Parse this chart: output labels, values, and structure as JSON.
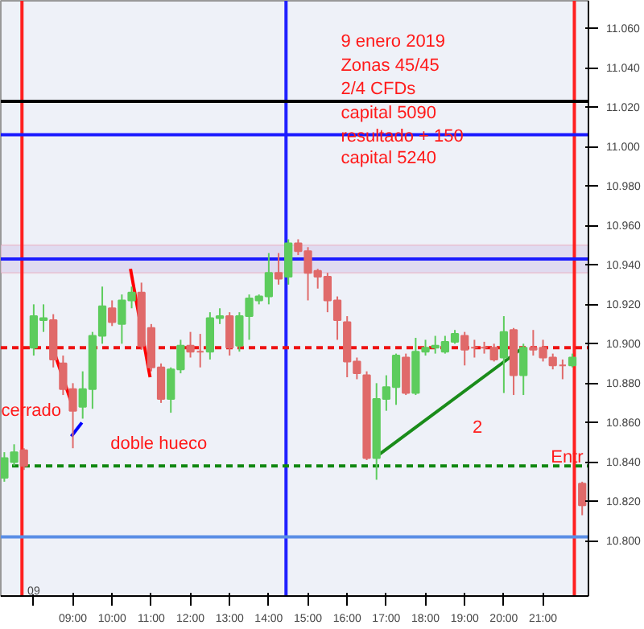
{
  "chart_data": {
    "type": "candlestick",
    "x": [
      7.25,
      7.5,
      7.75,
      8.0,
      8.25,
      8.5,
      8.75,
      9.0,
      9.25,
      9.5,
      9.75,
      10.0,
      10.25,
      10.5,
      10.75,
      11.0,
      11.25,
      11.5,
      11.75,
      12.0,
      12.25,
      12.5,
      12.75,
      13.0,
      13.25,
      13.5,
      13.75,
      14.0,
      14.25,
      14.5,
      14.75,
      15.0,
      15.25,
      15.5,
      15.75,
      16.0,
      16.25,
      16.5,
      16.75,
      17.0,
      17.25,
      17.5,
      17.75,
      18.0,
      18.25,
      18.5,
      18.75,
      19.0,
      19.25,
      19.5,
      19.75,
      20.0,
      20.25,
      20.5,
      20.75,
      21.0,
      21.25,
      21.5,
      21.75,
      22.0
    ],
    "ohlc": [
      [
        10.832,
        10.845,
        10.83,
        10.842
      ],
      [
        10.84,
        10.849,
        10.838,
        10.845
      ],
      [
        10.846,
        10.847,
        10.836,
        10.838
      ],
      [
        10.898,
        10.92,
        10.894,
        10.914
      ],
      [
        10.912,
        10.92,
        10.906,
        10.913
      ],
      [
        10.912,
        10.915,
        10.888,
        10.892
      ],
      [
        10.89,
        10.894,
        10.874,
        10.877
      ],
      [
        10.877,
        10.88,
        10.847,
        10.866
      ],
      [
        10.868,
        10.886,
        10.862,
        10.877
      ],
      [
        10.877,
        10.906,
        10.867,
        10.904
      ],
      [
        10.904,
        10.929,
        10.9,
        10.919
      ],
      [
        10.918,
        10.922,
        10.909,
        10.911
      ],
      [
        10.91,
        10.925,
        10.9,
        10.922
      ],
      [
        10.922,
        10.929,
        10.918,
        10.926
      ],
      [
        10.926,
        10.931,
        10.897,
        10.899
      ],
      [
        10.908,
        10.91,
        10.886,
        10.888
      ],
      [
        10.888,
        10.89,
        10.87,
        10.872
      ],
      [
        10.872,
        10.888,
        10.865,
        10.887
      ],
      [
        10.887,
        10.902,
        10.885,
        10.899
      ],
      [
        10.899,
        10.906,
        10.893,
        10.896
      ],
      [
        10.896,
        10.905,
        10.888,
        10.896
      ],
      [
        10.896,
        10.916,
        10.892,
        10.913
      ],
      [
        10.913,
        10.918,
        10.91,
        10.914
      ],
      [
        10.914,
        10.916,
        10.894,
        10.898
      ],
      [
        10.899,
        10.916,
        10.896,
        10.914
      ],
      [
        10.914,
        10.925,
        10.902,
        10.923
      ],
      [
        10.922,
        10.925,
        10.92,
        10.924
      ],
      [
        10.924,
        10.946,
        10.92,
        10.936
      ],
      [
        10.936,
        10.946,
        10.93,
        10.933
      ],
      [
        10.934,
        10.953,
        10.93,
        10.951
      ],
      [
        10.951,
        10.953,
        10.945,
        10.947
      ],
      [
        10.947,
        10.949,
        10.922,
        10.936
      ],
      [
        10.937,
        10.938,
        10.928,
        10.934
      ],
      [
        10.934,
        10.936,
        10.916,
        10.922
      ],
      [
        10.922,
        10.924,
        10.902,
        10.912
      ],
      [
        10.911,
        10.914,
        10.883,
        10.891
      ],
      [
        10.891,
        10.893,
        10.882,
        10.885
      ],
      [
        10.884,
        10.886,
        10.841,
        10.842
      ],
      [
        10.842,
        10.88,
        10.831,
        10.872
      ],
      [
        10.872,
        10.884,
        10.866,
        10.878
      ],
      [
        10.878,
        10.895,
        10.869,
        10.894
      ],
      [
        10.893,
        10.895,
        10.874,
        10.875
      ],
      [
        10.875,
        10.903,
        10.874,
        10.896
      ],
      [
        10.896,
        10.902,
        10.894,
        10.898
      ],
      [
        10.898,
        10.904,
        10.895,
        10.899
      ],
      [
        10.896,
        10.904,
        10.895,
        10.901
      ],
      [
        10.901,
        10.907,
        10.9,
        10.905
      ],
      [
        10.904,
        10.906,
        10.889,
        10.897
      ],
      [
        10.898,
        10.902,
        10.893,
        10.898
      ],
      [
        10.898,
        10.901,
        10.895,
        10.898
      ],
      [
        10.898,
        10.9,
        10.891,
        10.892
      ],
      [
        10.893,
        10.914,
        10.875,
        10.906
      ],
      [
        10.907,
        10.908,
        10.874,
        10.884
      ],
      [
        10.884,
        10.9,
        10.874,
        10.898
      ],
      [
        10.898,
        10.907,
        10.894,
        10.897
      ],
      [
        10.898,
        10.902,
        10.891,
        10.893
      ],
      [
        10.893,
        10.895,
        10.887,
        10.889
      ],
      [
        10.889,
        10.892,
        10.882,
        10.889
      ],
      [
        10.889,
        10.895,
        10.888,
        10.893
      ],
      [
        10.829,
        10.83,
        10.813,
        10.818
      ]
    ],
    "colors": [
      "#5dcc5d",
      "#5dcc5d",
      "#e06a6a",
      "#5dcc5d",
      "#5dcc5d",
      "#e06a6a",
      "#e06a6a",
      "#e06a6a",
      "#5dcc5d",
      "#5dcc5d",
      "#5dcc5d",
      "#e06a6a",
      "#5dcc5d",
      "#5dcc5d",
      "#e06a6a",
      "#e06a6a",
      "#e06a6a",
      "#5dcc5d",
      "#5dcc5d",
      "#e06a6a",
      "#e06a6a",
      "#5dcc5d",
      "#5dcc5d",
      "#e06a6a",
      "#5dcc5d",
      "#5dcc5d",
      "#5dcc5d",
      "#5dcc5d",
      "#e06a6a",
      "#5dcc5d",
      "#e06a6a",
      "#e06a6a",
      "#e06a6a",
      "#e06a6a",
      "#e06a6a",
      "#e06a6a",
      "#e06a6a",
      "#e06a6a",
      "#5dcc5d",
      "#5dcc5d",
      "#5dcc5d",
      "#e06a6a",
      "#5dcc5d",
      "#5dcc5d",
      "#5dcc5d",
      "#5dcc5d",
      "#5dcc5d",
      "#e06a6a",
      "#e06a6a",
      "#e06a6a",
      "#e06a6a",
      "#5dcc5d",
      "#e06a6a",
      "#5dcc5d",
      "#e06a6a",
      "#e06a6a",
      "#e06a6a",
      "#e06a6a",
      "#5dcc5d",
      "#e06a6a"
    ],
    "series": [
      {
        "type": "line",
        "color": "#ff0000",
        "x": [
          8.5,
          9.0
        ],
        "values": [
          10.897,
          10.868
        ]
      },
      {
        "type": "line",
        "color": "#ff0000",
        "x": [
          10.47,
          10.97
        ],
        "values": [
          10.938,
          10.883
        ]
      },
      {
        "type": "line",
        "color": "#1a8c1a",
        "x": [
          16.76,
          20.49
        ],
        "values": [
          10.843,
          10.898
        ]
      },
      {
        "type": "line",
        "color": "#0000ff",
        "x": [
          8.96,
          9.23
        ],
        "values": [
          10.853,
          10.86
        ]
      }
    ],
    "xlim": [
      7.16,
      22.16
    ],
    "xticks": [
      {
        "value": 8,
        "label": null
      },
      {
        "value": 9,
        "label": "09:00"
      },
      {
        "value": 10,
        "label": "10:00"
      },
      {
        "value": 11,
        "label": "11:00"
      },
      {
        "value": 12,
        "label": "12:00"
      },
      {
        "value": 13,
        "label": "13:00"
      },
      {
        "value": 14,
        "label": "14:00"
      },
      {
        "value": 15,
        "label": "15:00"
      },
      {
        "value": 16,
        "label": "16:00"
      },
      {
        "value": 17,
        "label": "17:00"
      },
      {
        "value": 18,
        "label": "18:00"
      },
      {
        "value": 19,
        "label": "19:00"
      },
      {
        "value": 20,
        "label": "20:00"
      },
      {
        "value": 21,
        "label": "21:00"
      }
    ],
    "ylim": [
      10.772,
      11.074
    ],
    "yticks": [
      {
        "value": 10.8,
        "label": "10.800"
      },
      {
        "value": 10.82,
        "label": "10.820"
      },
      {
        "value": 10.84,
        "label": "10.840"
      },
      {
        "value": 10.86,
        "label": "10.860"
      },
      {
        "value": 10.88,
        "label": "10.880"
      },
      {
        "value": 10.9,
        "label": "10.900"
      },
      {
        "value": 10.92,
        "label": "10.920"
      },
      {
        "value": 10.94,
        "label": "10.940"
      },
      {
        "value": 10.96,
        "label": "10.960"
      },
      {
        "value": 10.98,
        "label": "10.980"
      },
      {
        "value": 11.0,
        "label": "11.000"
      },
      {
        "value": 11.02,
        "label": "11.020"
      },
      {
        "value": 11.04,
        "label": "11.040"
      },
      {
        "value": 11.06,
        "label": "11.060"
      }
    ],
    "ref_lines": [
      {
        "axis": "x",
        "value": 7.7,
        "color": "#ff2020"
      },
      {
        "axis": "x",
        "value": 14.44,
        "color": "#2020ff"
      },
      {
        "axis": "x",
        "value": 21.8,
        "color": "#ff2020"
      },
      {
        "axis": "y",
        "value": 11.023,
        "color": "#000000"
      },
      {
        "axis": "y",
        "value": 11.006,
        "color": "#1a1aff"
      },
      {
        "axis": "y",
        "value": 10.943,
        "color": "#1a1aff"
      },
      {
        "axis": "y",
        "value": 10.898,
        "color": "#ee1111",
        "line_style": "dashed"
      },
      {
        "axis": "y",
        "value": 10.838,
        "color": "#118811",
        "line_style": "dashed"
      },
      {
        "axis": "y",
        "value": 10.802,
        "color": "#5a8ee6"
      }
    ],
    "bands": [
      {
        "axis": "y",
        "from": 10.936,
        "to": 10.95,
        "color": "#dcd6ee"
      }
    ],
    "annotations": [
      "9 enero 2019",
      "Zonas 45/45",
      " 2/4 CFDs",
      "capital 5090",
      "resultado  + 150",
      "capital    5240",
      "cerrado",
      "doble hueco",
      "2",
      "Entr",
      "09"
    ],
    "grid": false
  }
}
